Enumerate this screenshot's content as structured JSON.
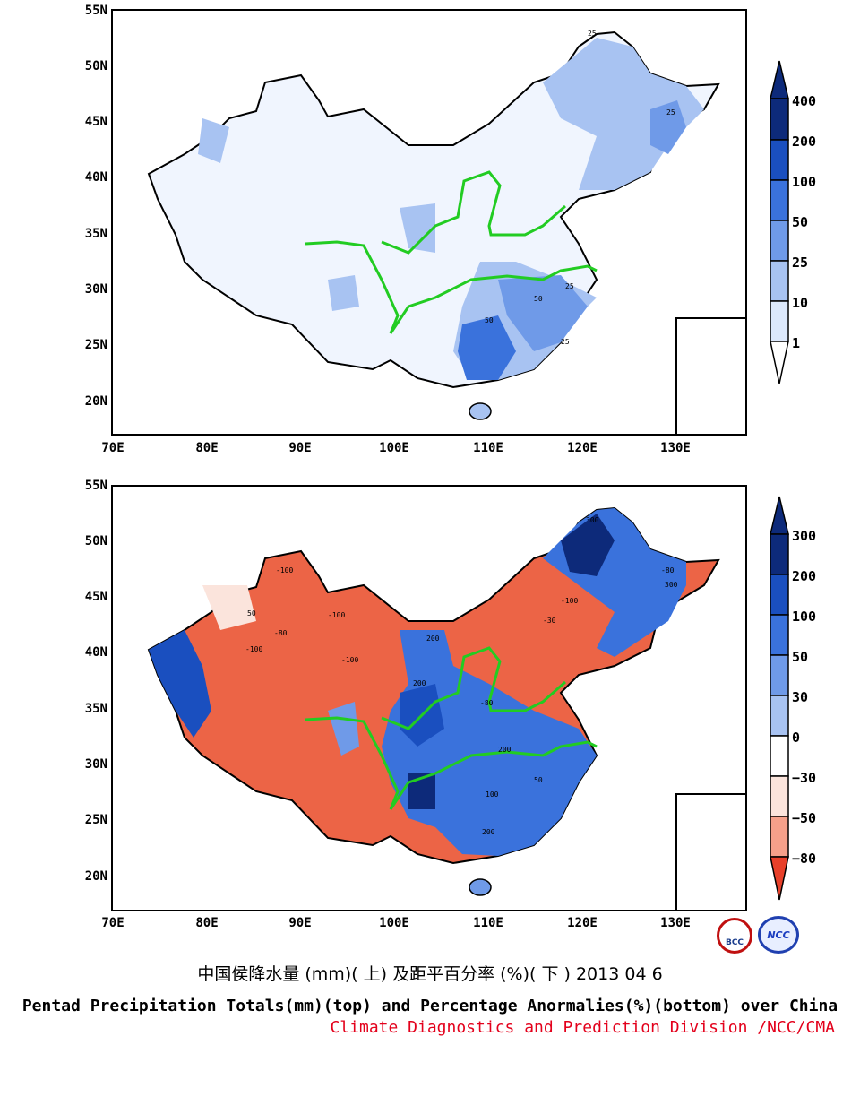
{
  "top_map": {
    "lat_labels": [
      "55N",
      "50N",
      "45N",
      "40N",
      "35N",
      "30N",
      "25N",
      "20N"
    ],
    "lon_labels": [
      "70E",
      "80E",
      "90E",
      "100E",
      "110E",
      "120E",
      "130E"
    ],
    "colorbar_labels": [
      "400",
      "200",
      "100",
      "50",
      "25",
      "10",
      "1"
    ],
    "colorbar_colors": [
      "#0d2a7a",
      "#1a4fbf",
      "#3a72dc",
      "#6f9ae8",
      "#a8c3f2",
      "#dce8fb",
      "#ffffff"
    ],
    "contour_labels": [
      "25",
      "25",
      "50",
      "25",
      "50",
      "25"
    ]
  },
  "bottom_map": {
    "lat_labels": [
      "55N",
      "50N",
      "45N",
      "40N",
      "35N",
      "30N",
      "25N",
      "20N"
    ],
    "lon_labels": [
      "70E",
      "80E",
      "90E",
      "100E",
      "110E",
      "120E",
      "130E"
    ],
    "colorbar_labels": [
      "300",
      "200",
      "100",
      "50",
      "30",
      "0",
      "−30",
      "−50",
      "−80"
    ],
    "colorbar_colors": [
      "#0d2a7a",
      "#1a4fbf",
      "#3a72dc",
      "#6f9ae8",
      "#a8c3f2",
      "#ffffff",
      "#fbe4dc",
      "#f5a08a",
      "#ec6446",
      "#e8402a"
    ],
    "contour_labels": [
      "-100",
      "-100",
      "50",
      "-80",
      "-100",
      "-100",
      "200",
      "200",
      "-80",
      "300",
      "-100",
      "-30",
      "-80",
      "300",
      "100",
      "50",
      "200",
      "200"
    ]
  },
  "titles": {
    "chinese": "中国侯降水量 (mm)( 上) 及距平百分率 (%)( 下 ) 2013 04 6",
    "english": "Pentad Precipitation Totals(mm)(top) and Percentage Anormalies(%)(bottom) over China",
    "division": "Climate Diagnostics and Prediction Division /NCC/CMA"
  },
  "logos": {
    "left": "BCC",
    "right": "NCC"
  },
  "colors": {
    "river": "#22cc22",
    "title_red": "#e3001b"
  }
}
